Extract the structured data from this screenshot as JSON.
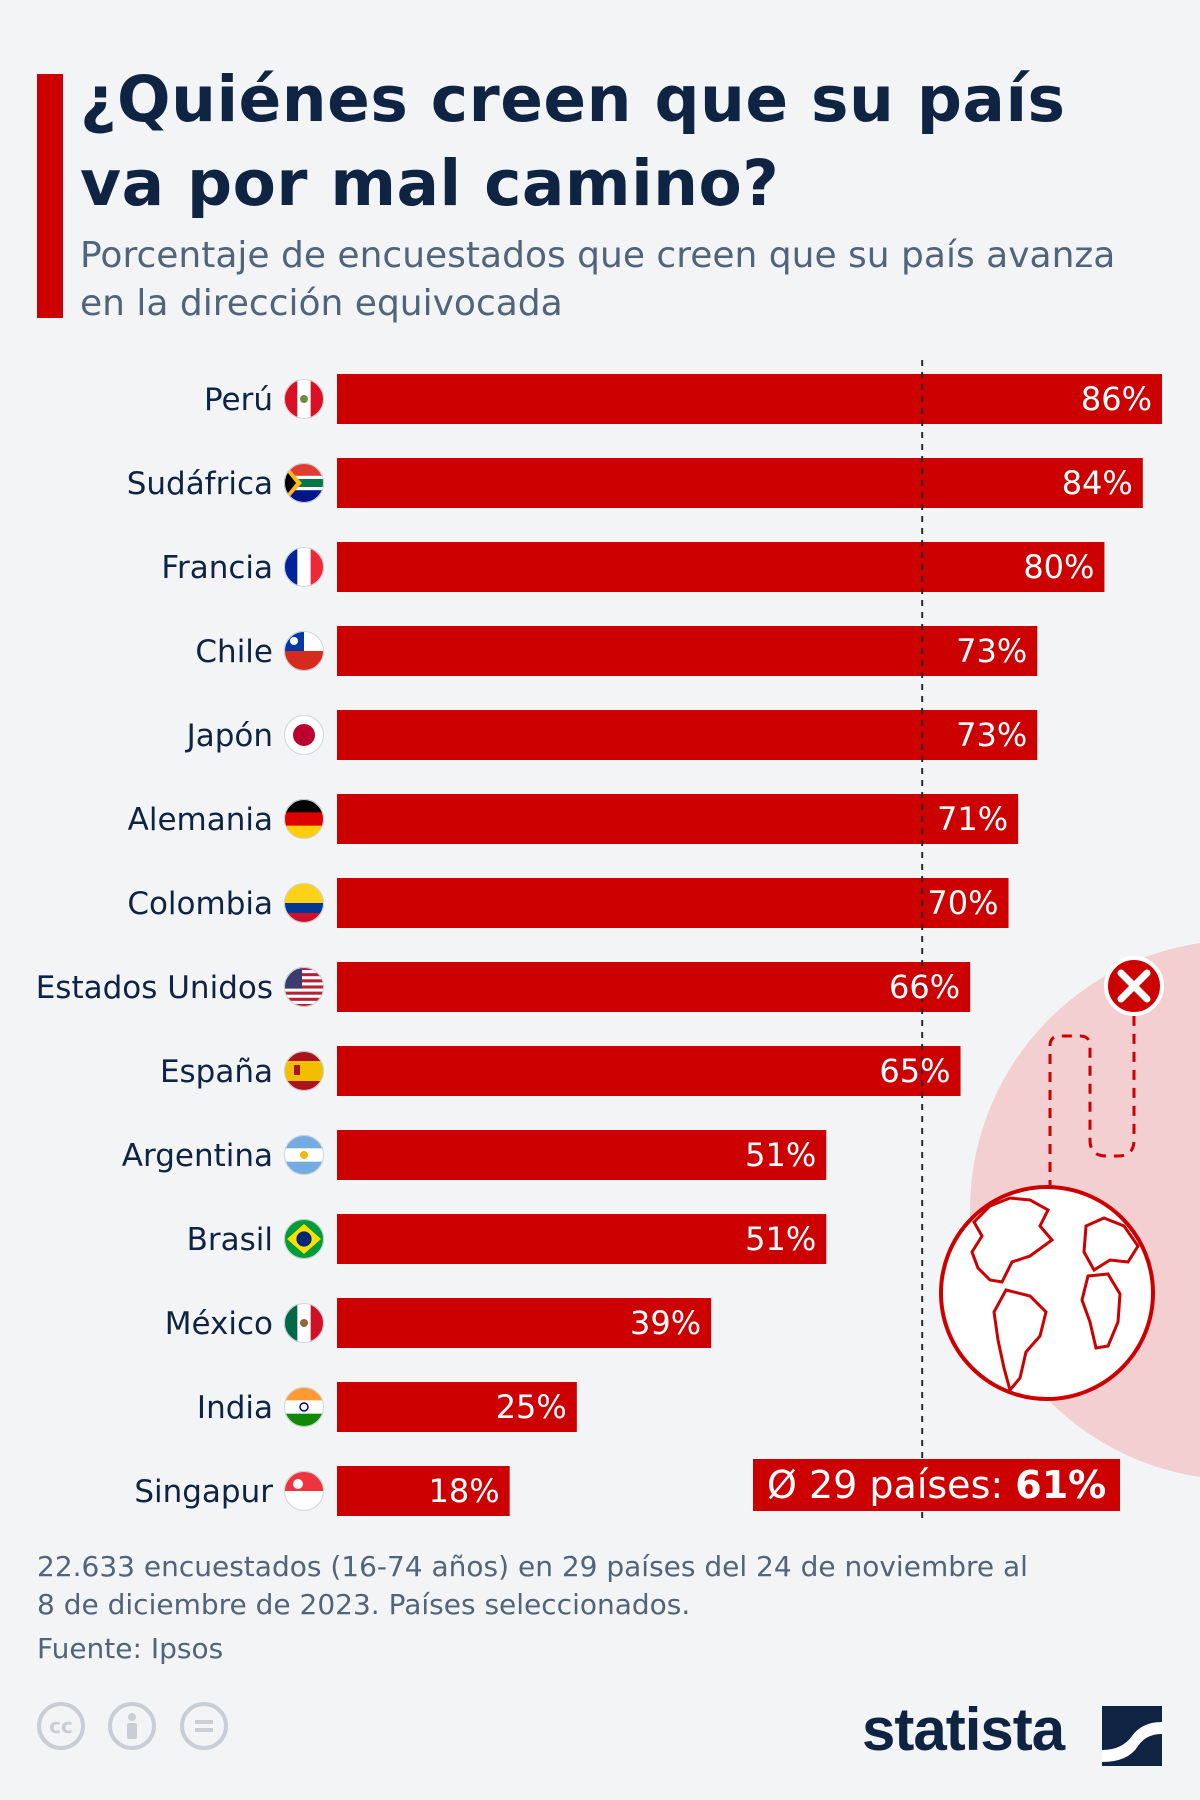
{
  "header": {
    "title": "¿Quiénes creen que su país va por mal camino?",
    "subtitle": "Porcentaje de encuestados que creen que su país avanza en la dirección equivocada"
  },
  "colors": {
    "accent": "#cc0000",
    "title_text": "#0f2342",
    "muted_text": "#52647a",
    "background": "#f2f4f6",
    "globe_circle": "#f3cfd1"
  },
  "chart_data": {
    "type": "bar",
    "orientation": "horizontal",
    "categories": [
      "Perú",
      "Sudáfrica",
      "Francia",
      "Chile",
      "Japón",
      "Alemania",
      "Colombia",
      "Estados Unidos",
      "España",
      "Argentina",
      "Brasil",
      "México",
      "India",
      "Singapur"
    ],
    "values": [
      86,
      84,
      80,
      73,
      73,
      71,
      70,
      66,
      65,
      51,
      51,
      39,
      25,
      18
    ],
    "value_labels": [
      "86%",
      "84%",
      "80%",
      "73%",
      "73%",
      "71%",
      "70%",
      "66%",
      "65%",
      "51%",
      "51%",
      "39%",
      "25%",
      "18%"
    ],
    "unit": "%",
    "flag_icons": [
      "peru-flag-icon",
      "south-africa-flag-icon",
      "france-flag-icon",
      "chile-flag-icon",
      "japan-flag-icon",
      "germany-flag-icon",
      "colombia-flag-icon",
      "usa-flag-icon",
      "spain-flag-icon",
      "argentina-flag-icon",
      "brazil-flag-icon",
      "mexico-flag-icon",
      "india-flag-icon",
      "singapore-flag-icon"
    ],
    "average": 61,
    "average_label_prefix": "Ø 29 países:",
    "average_label_value": "61%",
    "xlim": [
      0,
      86
    ],
    "grid": false,
    "bar_color": "#cc0000"
  },
  "footer": {
    "note": "22.633 encuestados (16-74 años) en 29 países del 24 de noviembre al 8 de diciembre de 2023. Países seleccionados.",
    "source": "Fuente: Ipsos",
    "license_icons": [
      "cc-icon",
      "attribution-icon",
      "no-derivatives-icon"
    ],
    "logo_text": "statista"
  }
}
